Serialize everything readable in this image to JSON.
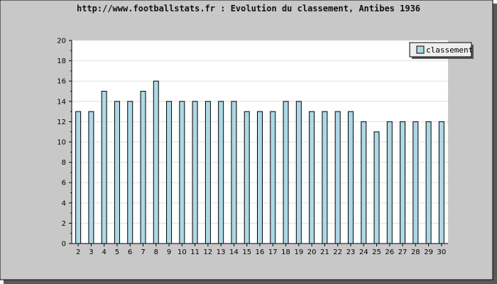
{
  "chart_data": {
    "type": "bar",
    "title": "http://www.footballstats.fr : Evolution du classement, Antibes 1936",
    "xlabel": "",
    "ylabel": "",
    "categories": [
      "2",
      "3",
      "4",
      "5",
      "6",
      "7",
      "8",
      "9",
      "10",
      "11",
      "12",
      "13",
      "14",
      "15",
      "16",
      "17",
      "18",
      "19",
      "20",
      "21",
      "22",
      "23",
      "24",
      "25",
      "26",
      "27",
      "28",
      "29",
      "30"
    ],
    "series": [
      {
        "name": "classement",
        "values": [
          13,
          13,
          15,
          14,
          14,
          15,
          16,
          14,
          14,
          14,
          14,
          14,
          14,
          13,
          13,
          13,
          14,
          14,
          13,
          13,
          13,
          13,
          12,
          11,
          12,
          12,
          12,
          12,
          12
        ]
      }
    ],
    "ylim": [
      0,
      20
    ],
    "yticks": [
      "0",
      "2",
      "4",
      "6",
      "8",
      "10",
      "12",
      "14",
      "16",
      "18",
      "20"
    ],
    "grid": true,
    "legend_position": "top-right",
    "colors": {
      "background": "#c8c8c8",
      "plot_background": "#ffffff",
      "bar_fill": "#add8e6",
      "bar_stroke": "#000000",
      "grid": "#e0e0e0",
      "shadow": "#5a5a5a",
      "legend_bg": "#eeeeee"
    }
  }
}
